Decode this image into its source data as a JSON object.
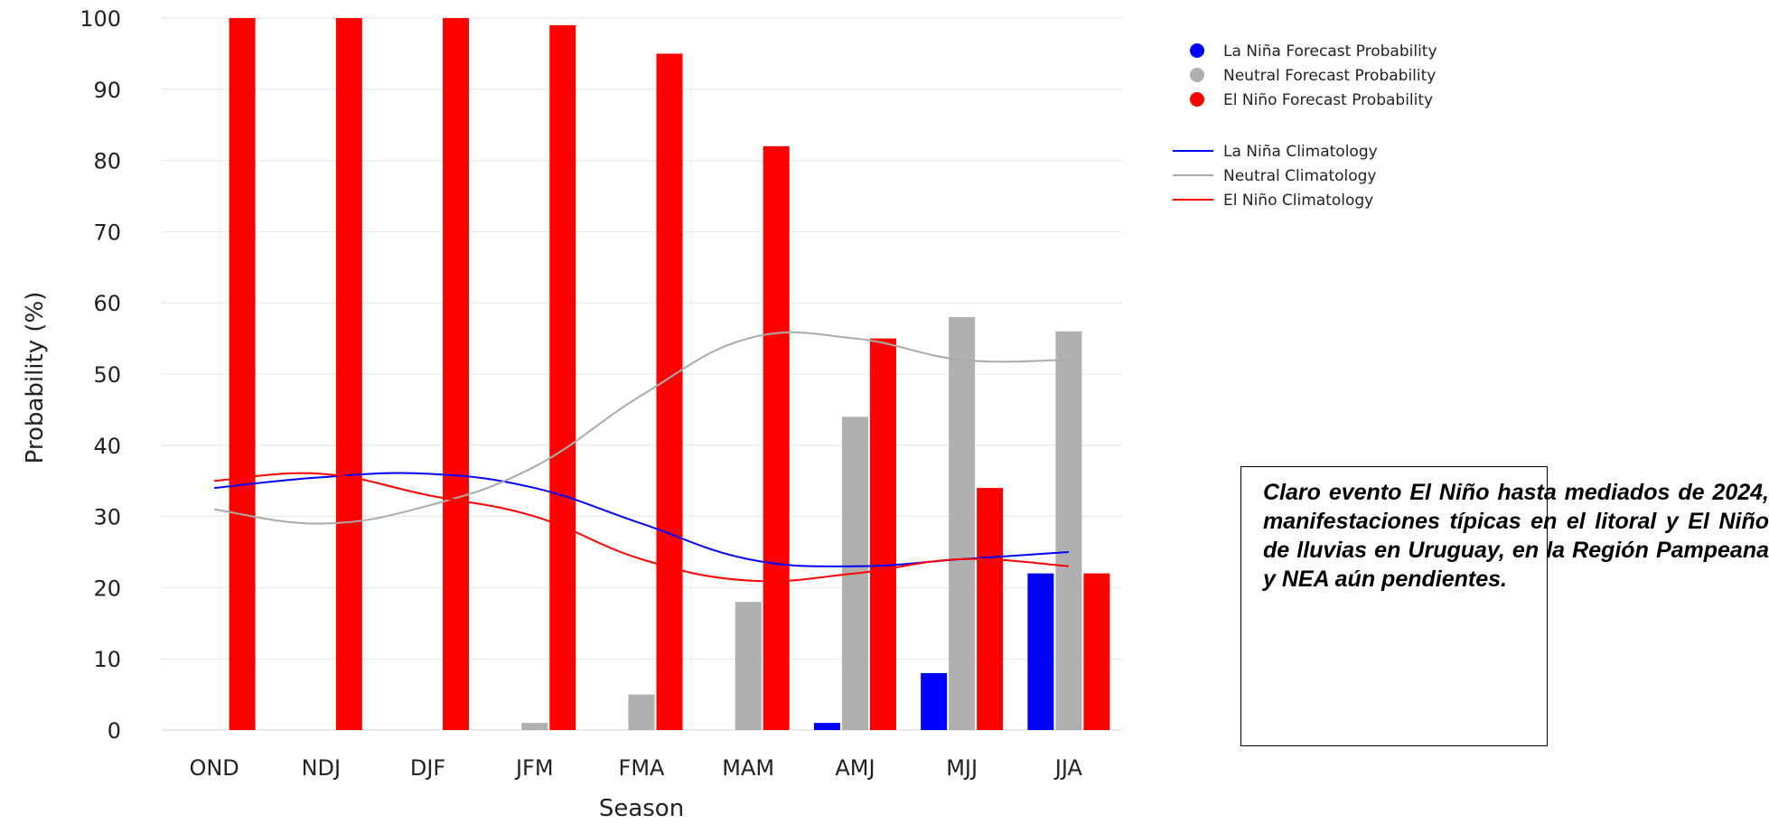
{
  "chart_data": {
    "type": "bar",
    "xlabel": "Season",
    "ylabel": "Probability (%)",
    "ylim": [
      0,
      100
    ],
    "y_ticks": [
      0,
      10,
      20,
      30,
      40,
      50,
      60,
      70,
      80,
      90,
      100
    ],
    "categories": [
      "OND",
      "NDJ",
      "DJF",
      "JFM",
      "FMA",
      "MAM",
      "AMJ",
      "MJJ",
      "JJA"
    ],
    "grid": true,
    "legend_position": "top-right",
    "series": [
      {
        "name": "La Niña Forecast Probability",
        "color": "#0000ff",
        "values": [
          0,
          0,
          0,
          0,
          0,
          0,
          1,
          8,
          22
        ]
      },
      {
        "name": "Neutral Forecast Probability",
        "color": "#b0b0b0",
        "values": [
          0,
          0,
          0,
          1,
          5,
          18,
          44,
          58,
          56
        ]
      },
      {
        "name": "El Niño Forecast Probability",
        "color": "#ff0000",
        "values": [
          100,
          100,
          100,
          99,
          95,
          82,
          55,
          34,
          22
        ]
      }
    ],
    "lines": [
      {
        "name": "La Niña Climatology",
        "color": "#0000ff",
        "values": [
          34,
          35.5,
          36,
          34,
          29,
          24,
          23,
          24,
          25
        ]
      },
      {
        "name": "Neutral Climatology",
        "color": "#aaaaaa",
        "values": [
          31,
          29,
          31.5,
          37,
          47,
          55,
          55,
          52,
          52
        ]
      },
      {
        "name": "El Niño Climatology",
        "color": "#ff0000",
        "values": [
          35,
          36,
          33,
          30,
          24,
          21,
          22,
          24,
          23
        ]
      }
    ]
  },
  "note": {
    "text": "Claro evento El Niño hasta mediados de 2024, manifestaciones típicas en el litoral y El Niño de lluvias en Uruguay, en la Región Pampeana y NEA aún pendientes."
  }
}
